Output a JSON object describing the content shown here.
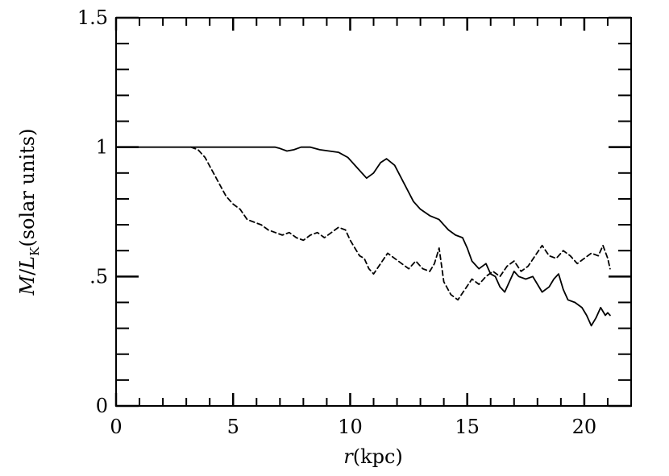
{
  "chart_data": {
    "type": "line",
    "title": "",
    "xlabel": {
      "var": "r",
      "unit": "(kpc)"
    },
    "ylabel": {
      "var_m": "M",
      "slash": "/",
      "var_l": "L",
      "sub": "K",
      "unit": "(solar units)"
    },
    "xlim": [
      0,
      22
    ],
    "ylim": [
      0,
      1.5
    ],
    "xticks": [
      {
        "v": 0,
        "label": "0"
      },
      {
        "v": 5,
        "label": "5"
      },
      {
        "v": 10,
        "label": "10"
      },
      {
        "v": 15,
        "label": "15"
      },
      {
        "v": 20,
        "label": "20"
      }
    ],
    "yticks": [
      {
        "v": 0,
        "label": "0"
      },
      {
        "v": 0.5,
        "label": ".5"
      },
      {
        "v": 1,
        "label": "1"
      },
      {
        "v": 1.5,
        "label": "1.5"
      }
    ],
    "x_minor_step": 1,
    "y_minor_step": 0.1,
    "grid": false,
    "series": [
      {
        "style": "solid",
        "points": [
          [
            0,
            1.0
          ],
          [
            6.8,
            1.0
          ],
          [
            7.0,
            0.995
          ],
          [
            7.3,
            0.985
          ],
          [
            7.6,
            0.99
          ],
          [
            7.9,
            1.0
          ],
          [
            8.3,
            1.0
          ],
          [
            8.7,
            0.99
          ],
          [
            9.1,
            0.985
          ],
          [
            9.5,
            0.98
          ],
          [
            9.9,
            0.96
          ],
          [
            10.3,
            0.92
          ],
          [
            10.7,
            0.88
          ],
          [
            11.0,
            0.9
          ],
          [
            11.3,
            0.94
          ],
          [
            11.55,
            0.955
          ],
          [
            11.9,
            0.93
          ],
          [
            12.3,
            0.86
          ],
          [
            12.7,
            0.79
          ],
          [
            13.0,
            0.76
          ],
          [
            13.4,
            0.735
          ],
          [
            13.8,
            0.72
          ],
          [
            14.0,
            0.7
          ],
          [
            14.2,
            0.68
          ],
          [
            14.5,
            0.66
          ],
          [
            14.8,
            0.65
          ],
          [
            15.0,
            0.61
          ],
          [
            15.2,
            0.56
          ],
          [
            15.5,
            0.53
          ],
          [
            15.8,
            0.55
          ],
          [
            16.0,
            0.51
          ],
          [
            16.2,
            0.5
          ],
          [
            16.4,
            0.46
          ],
          [
            16.6,
            0.44
          ],
          [
            16.8,
            0.48
          ],
          [
            17.0,
            0.52
          ],
          [
            17.2,
            0.5
          ],
          [
            17.5,
            0.49
          ],
          [
            17.8,
            0.5
          ],
          [
            18.0,
            0.47
          ],
          [
            18.2,
            0.44
          ],
          [
            18.5,
            0.46
          ],
          [
            18.7,
            0.49
          ],
          [
            18.9,
            0.51
          ],
          [
            19.1,
            0.45
          ],
          [
            19.3,
            0.41
          ],
          [
            19.6,
            0.4
          ],
          [
            19.9,
            0.38
          ],
          [
            20.1,
            0.35
          ],
          [
            20.3,
            0.31
          ],
          [
            20.5,
            0.34
          ],
          [
            20.7,
            0.38
          ],
          [
            20.9,
            0.35
          ],
          [
            21.0,
            0.36
          ],
          [
            21.1,
            0.35
          ]
        ]
      },
      {
        "style": "dashed",
        "points": [
          [
            3.2,
            1.0
          ],
          [
            3.5,
            0.99
          ],
          [
            3.8,
            0.96
          ],
          [
            4.1,
            0.91
          ],
          [
            4.4,
            0.86
          ],
          [
            4.7,
            0.81
          ],
          [
            5.0,
            0.78
          ],
          [
            5.3,
            0.76
          ],
          [
            5.6,
            0.72
          ],
          [
            5.9,
            0.71
          ],
          [
            6.2,
            0.7
          ],
          [
            6.5,
            0.68
          ],
          [
            6.8,
            0.67
          ],
          [
            7.1,
            0.66
          ],
          [
            7.4,
            0.67
          ],
          [
            7.7,
            0.65
          ],
          [
            8.0,
            0.64
          ],
          [
            8.3,
            0.66
          ],
          [
            8.6,
            0.67
          ],
          [
            8.9,
            0.65
          ],
          [
            9.2,
            0.67
          ],
          [
            9.5,
            0.69
          ],
          [
            9.8,
            0.68
          ],
          [
            10.0,
            0.64
          ],
          [
            10.2,
            0.61
          ],
          [
            10.4,
            0.58
          ],
          [
            10.6,
            0.57
          ],
          [
            10.8,
            0.53
          ],
          [
            11.0,
            0.51
          ],
          [
            11.3,
            0.55
          ],
          [
            11.6,
            0.59
          ],
          [
            11.9,
            0.57
          ],
          [
            12.2,
            0.55
          ],
          [
            12.5,
            0.53
          ],
          [
            12.8,
            0.56
          ],
          [
            13.1,
            0.53
          ],
          [
            13.4,
            0.52
          ],
          [
            13.6,
            0.55
          ],
          [
            13.8,
            0.61
          ],
          [
            14.0,
            0.48
          ],
          [
            14.3,
            0.43
          ],
          [
            14.6,
            0.41
          ],
          [
            14.9,
            0.45
          ],
          [
            15.2,
            0.49
          ],
          [
            15.5,
            0.47
          ],
          [
            15.8,
            0.5
          ],
          [
            16.1,
            0.52
          ],
          [
            16.4,
            0.5
          ],
          [
            16.7,
            0.54
          ],
          [
            17.0,
            0.56
          ],
          [
            17.3,
            0.52
          ],
          [
            17.6,
            0.54
          ],
          [
            17.9,
            0.58
          ],
          [
            18.2,
            0.62
          ],
          [
            18.5,
            0.58
          ],
          [
            18.8,
            0.57
          ],
          [
            19.1,
            0.6
          ],
          [
            19.4,
            0.58
          ],
          [
            19.7,
            0.55
          ],
          [
            20.0,
            0.57
          ],
          [
            20.3,
            0.59
          ],
          [
            20.6,
            0.58
          ],
          [
            20.8,
            0.62
          ],
          [
            21.0,
            0.57
          ],
          [
            21.1,
            0.53
          ]
        ]
      }
    ]
  }
}
